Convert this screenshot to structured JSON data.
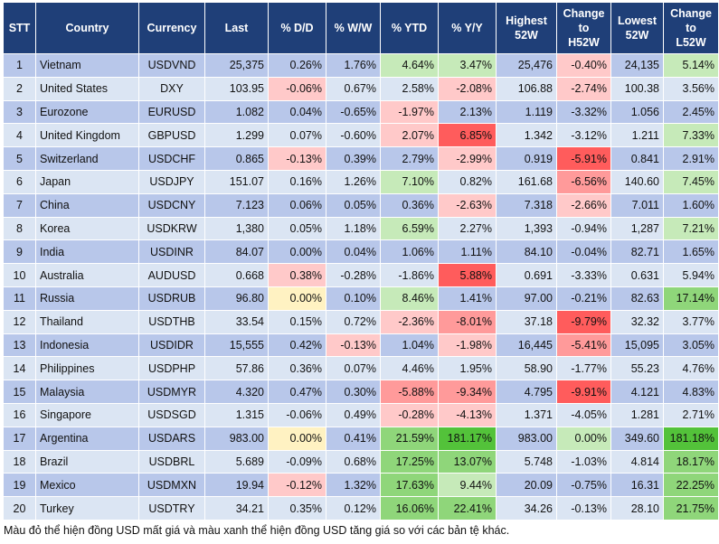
{
  "headers": {
    "stt": "STT",
    "country": "Country",
    "currency": "Currency",
    "last": "Last",
    "dd": "% D/D",
    "ww": "% W/W",
    "ytd": "% YTD",
    "yy": "% Y/Y",
    "high_a": "Highest",
    "high_b": "52W",
    "chh_a": "Change",
    "chh_b": "to",
    "chh_c": "H52W",
    "low_a": "Lowest",
    "low_b": "52W",
    "chl_a": "Change",
    "chl_b": "to",
    "chl_c": "L52W"
  },
  "rows": [
    {
      "stt": "1",
      "country": "Vietnam",
      "currency": "USDVND",
      "last": "25,375",
      "dd": "0.26%",
      "ww": "1.76%",
      "ytd": "4.64%",
      "yy": "3.47%",
      "high": "25,476",
      "chh": "-0.40%",
      "low": "24,135",
      "chl": "5.14%"
    },
    {
      "stt": "2",
      "country": "United States",
      "currency": "DXY",
      "last": "103.95",
      "dd": "-0.06%",
      "ww": "0.67%",
      "ytd": "2.58%",
      "yy": "-2.08%",
      "high": "106.88",
      "chh": "-2.74%",
      "low": "100.38",
      "chl": "3.56%"
    },
    {
      "stt": "3",
      "country": "Eurozone",
      "currency": "EURUSD",
      "last": "1.082",
      "dd": "0.04%",
      "ww": "-0.65%",
      "ytd": "-1.97%",
      "yy": "2.13%",
      "high": "1.119",
      "chh": "-3.32%",
      "low": "1.056",
      "chl": "2.45%"
    },
    {
      "stt": "4",
      "country": "United Kingdom",
      "currency": "GBPUSD",
      "last": "1.299",
      "dd": "0.07%",
      "ww": "-0.60%",
      "ytd": "2.07%",
      "yy": "6.85%",
      "high": "1.342",
      "chh": "-3.12%",
      "low": "1.211",
      "chl": "7.33%"
    },
    {
      "stt": "5",
      "country": "Switzerland",
      "currency": "USDCHF",
      "last": "0.865",
      "dd": "-0.13%",
      "ww": "0.39%",
      "ytd": "2.79%",
      "yy": "-2.99%",
      "high": "0.919",
      "chh": "-5.91%",
      "low": "0.841",
      "chl": "2.91%"
    },
    {
      "stt": "6",
      "country": "Japan",
      "currency": "USDJPY",
      "last": "151.07",
      "dd": "0.16%",
      "ww": "1.26%",
      "ytd": "7.10%",
      "yy": "0.82%",
      "high": "161.68",
      "chh": "-6.56%",
      "low": "140.60",
      "chl": "7.45%"
    },
    {
      "stt": "7",
      "country": "China",
      "currency": "USDCNY",
      "last": "7.123",
      "dd": "0.06%",
      "ww": "0.05%",
      "ytd": "0.36%",
      "yy": "-2.63%",
      "high": "7.318",
      "chh": "-2.66%",
      "low": "7.011",
      "chl": "1.60%"
    },
    {
      "stt": "8",
      "country": "Korea",
      "currency": "USDKRW",
      "last": "1,380",
      "dd": "0.05%",
      "ww": "1.18%",
      "ytd": "6.59%",
      "yy": "2.27%",
      "high": "1,393",
      "chh": "-0.94%",
      "low": "1,287",
      "chl": "7.21%"
    },
    {
      "stt": "9",
      "country": "India",
      "currency": "USDINR",
      "last": "84.07",
      "dd": "0.00%",
      "ww": "0.04%",
      "ytd": "1.06%",
      "yy": "1.11%",
      "high": "84.10",
      "chh": "-0.04%",
      "low": "82.71",
      "chl": "1.65%"
    },
    {
      "stt": "10",
      "country": "Australia",
      "currency": "AUDUSD",
      "last": "0.668",
      "dd": "0.38%",
      "ww": "-0.28%",
      "ytd": "-1.86%",
      "yy": "5.88%",
      "high": "0.691",
      "chh": "-3.33%",
      "low": "0.631",
      "chl": "5.94%"
    },
    {
      "stt": "11",
      "country": "Russia",
      "currency": "USDRUB",
      "last": "96.80",
      "dd": "0.00%",
      "ww": "0.10%",
      "ytd": "8.46%",
      "yy": "1.41%",
      "high": "97.00",
      "chh": "-0.21%",
      "low": "82.63",
      "chl": "17.14%"
    },
    {
      "stt": "12",
      "country": "Thailand",
      "currency": "USDTHB",
      "last": "33.54",
      "dd": "0.15%",
      "ww": "0.72%",
      "ytd": "-2.36%",
      "yy": "-8.01%",
      "high": "37.18",
      "chh": "-9.79%",
      "low": "32.32",
      "chl": "3.77%"
    },
    {
      "stt": "13",
      "country": "Indonesia",
      "currency": "USDIDR",
      "last": "15,555",
      "dd": "0.42%",
      "ww": "-0.13%",
      "ytd": "1.04%",
      "yy": "-1.98%",
      "high": "16,445",
      "chh": "-5.41%",
      "low": "15,095",
      "chl": "3.05%"
    },
    {
      "stt": "14",
      "country": "Philippines",
      "currency": "USDPHP",
      "last": "57.86",
      "dd": "0.36%",
      "ww": "0.07%",
      "ytd": "4.46%",
      "yy": "1.95%",
      "high": "58.90",
      "chh": "-1.77%",
      "low": "55.23",
      "chl": "4.76%"
    },
    {
      "stt": "15",
      "country": "Malaysia",
      "currency": "USDMYR",
      "last": "4.320",
      "dd": "0.47%",
      "ww": "0.30%",
      "ytd": "-5.88%",
      "yy": "-9.34%",
      "high": "4.795",
      "chh": "-9.91%",
      "low": "4.121",
      "chl": "4.83%"
    },
    {
      "stt": "16",
      "country": "Singapore",
      "currency": "USDSGD",
      "last": "1.315",
      "dd": "-0.06%",
      "ww": "0.49%",
      "ytd": "-0.28%",
      "yy": "-4.13%",
      "high": "1.371",
      "chh": "-4.05%",
      "low": "1.281",
      "chl": "2.71%"
    },
    {
      "stt": "17",
      "country": "Argentina",
      "currency": "USDARS",
      "last": "983.00",
      "dd": "0.00%",
      "ww": "0.41%",
      "ytd": "21.59%",
      "yy": "181.17%",
      "high": "983.00",
      "chh": "0.00%",
      "low": "349.60",
      "chl": "181.18%"
    },
    {
      "stt": "18",
      "country": "Brazil",
      "currency": "USDBRL",
      "last": "5.689",
      "dd": "-0.09%",
      "ww": "0.68%",
      "ytd": "17.25%",
      "yy": "13.07%",
      "high": "5.748",
      "chh": "-1.03%",
      "low": "4.814",
      "chl": "18.17%"
    },
    {
      "stt": "19",
      "country": "Mexico",
      "currency": "USDMXN",
      "last": "19.94",
      "dd": "-0.12%",
      "ww": "1.32%",
      "ytd": "17.63%",
      "yy": "9.44%",
      "high": "20.09",
      "chh": "-0.75%",
      "low": "16.31",
      "chl": "22.25%"
    },
    {
      "stt": "20",
      "country": "Turkey",
      "currency": "USDTRY",
      "last": "34.21",
      "dd": "0.35%",
      "ww": "0.12%",
      "ytd": "16.06%",
      "yy": "22.41%",
      "high": "34.26",
      "chh": "-0.13%",
      "low": "28.10",
      "chl": "21.75%"
    }
  ],
  "cell_shading": {
    "1": {
      "ytd": "grn1",
      "yy": "grn1",
      "chh": "red1",
      "chl": "grn1"
    },
    "2": {
      "dd": "red1",
      "yy": "red1",
      "chh": "red1"
    },
    "3": {
      "ytd": "red1"
    },
    "4": {
      "ytd": "red1",
      "yy": "red3",
      "chl": "grn1"
    },
    "5": {
      "dd": "red1",
      "yy": "red1",
      "chh": "red3"
    },
    "6": {
      "ytd": "grn1",
      "chh": "red2",
      "chl": "grn1"
    },
    "7": {
      "yy": "red1",
      "chh": "red1"
    },
    "8": {
      "ytd": "grn1",
      "chl": "grn1"
    },
    "10": {
      "dd": "red1",
      "yy": "red3"
    },
    "11": {
      "dd": "yel",
      "ytd": "grn1",
      "chl": "grn2"
    },
    "12": {
      "ytd": "red1",
      "yy": "red2",
      "chh": "red3"
    },
    "13": {
      "ww": "red1",
      "yy": "red1",
      "chh": "red2"
    },
    "15": {
      "ytd": "red2",
      "yy": "red2",
      "chh": "red3"
    },
    "16": {
      "ytd": "red1",
      "yy": "red1"
    },
    "17": {
      "dd": "yel",
      "ytd": "grn2",
      "yy": "grn3",
      "chh": "grn1",
      "chl": "grn3"
    },
    "18": {
      "ytd": "grn2",
      "yy": "grn2",
      "chl": "grn2"
    },
    "19": {
      "dd": "red1",
      "ytd": "grn2",
      "yy": "grn1",
      "chl": "grn2"
    },
    "20": {
      "ytd": "grn2",
      "yy": "grn2",
      "chl": "grn2"
    }
  },
  "note": "Màu đỏ thể hiện đồng USD mất giá và màu xanh thể hiện đồng USD tăng giá so với các bản tệ khác."
}
